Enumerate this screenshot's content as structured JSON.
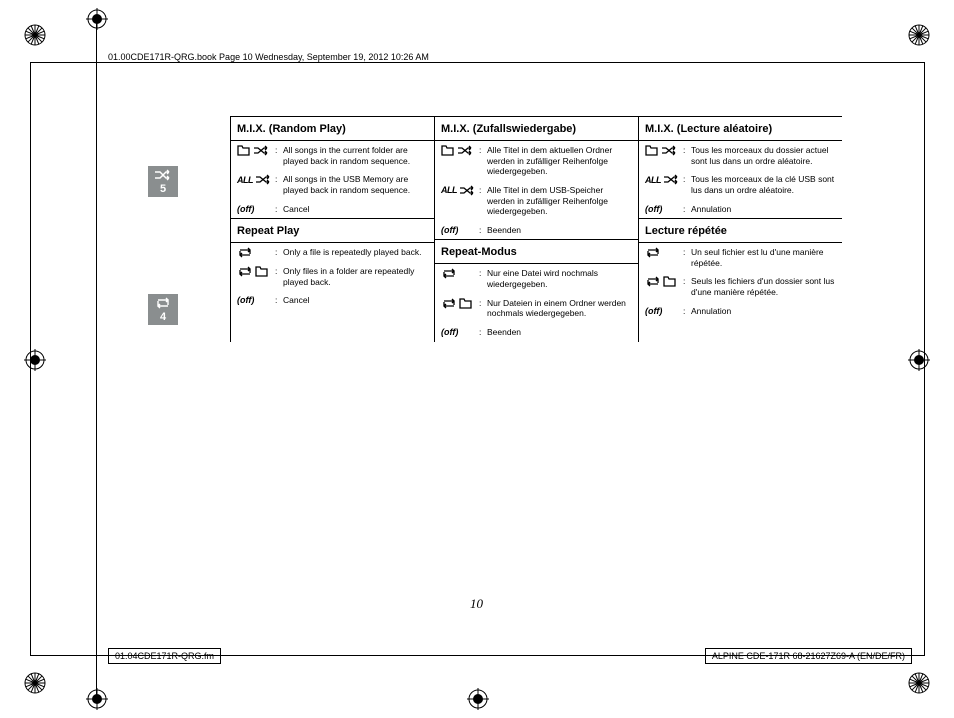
{
  "header": "01.00CDE171R-QRG.book  Page 10  Wednesday, September 19, 2012  10:26 AM",
  "footer_left": "01.04CDE171R-QRG.fm",
  "footer_right": "ALPINE CDE-171R 68-21627Z69-A (EN/DE/FR)",
  "page_number": "10",
  "badge5": {
    "num": "5"
  },
  "badge4": {
    "num": "4"
  },
  "sections": [
    {
      "headings": [
        "M.I.X.  (Random Play)",
        "M.I.X. (Zufallswiedergabe)",
        "M.I.X.  (Lecture aléatoire)"
      ],
      "rows": [
        {
          "icon": "folder-shuffle",
          "cells": [
            "All songs in the current folder are played back in random sequence.",
            "Alle Titel in dem aktuellen Ordner werden in zufälliger Reihenfolge wiedergegeben.",
            "Tous les morceaux du dossier actuel sont lus dans un ordre aléatoire."
          ]
        },
        {
          "icon": "all-shuffle",
          "cells": [
            "All songs in the USB Memory are played back in random sequence.",
            "Alle Titel in dem USB-Speicher werden in zufälliger Reihenfolge wiedergegeben.",
            "Tous les morceaux de la clé USB sont lus dans un ordre aléatoire."
          ]
        },
        {
          "icon": "off",
          "cells": [
            "Cancel",
            "Beenden",
            "Annulation"
          ]
        }
      ]
    },
    {
      "headings": [
        "Repeat Play",
        "Repeat-Modus",
        "Lecture répétée"
      ],
      "rows": [
        {
          "icon": "repeat",
          "cells": [
            "Only a file is repeatedly played back.",
            "Nur eine Datei wird nochmals wiedergegeben.",
            "Un seul fichier est lu d'une manière répétée."
          ]
        },
        {
          "icon": "repeat-folder",
          "cells": [
            "Only files in a folder are repeatedly played back.",
            "Nur Dateien in einem Ordner werden nochmals wiedergegeben.",
            "Seuls les fichiers d'un dossier sont lus d'une manière répétée."
          ]
        },
        {
          "icon": "off",
          "cells": [
            "Cancel",
            "Beenden",
            "Annulation"
          ]
        }
      ]
    }
  ]
}
